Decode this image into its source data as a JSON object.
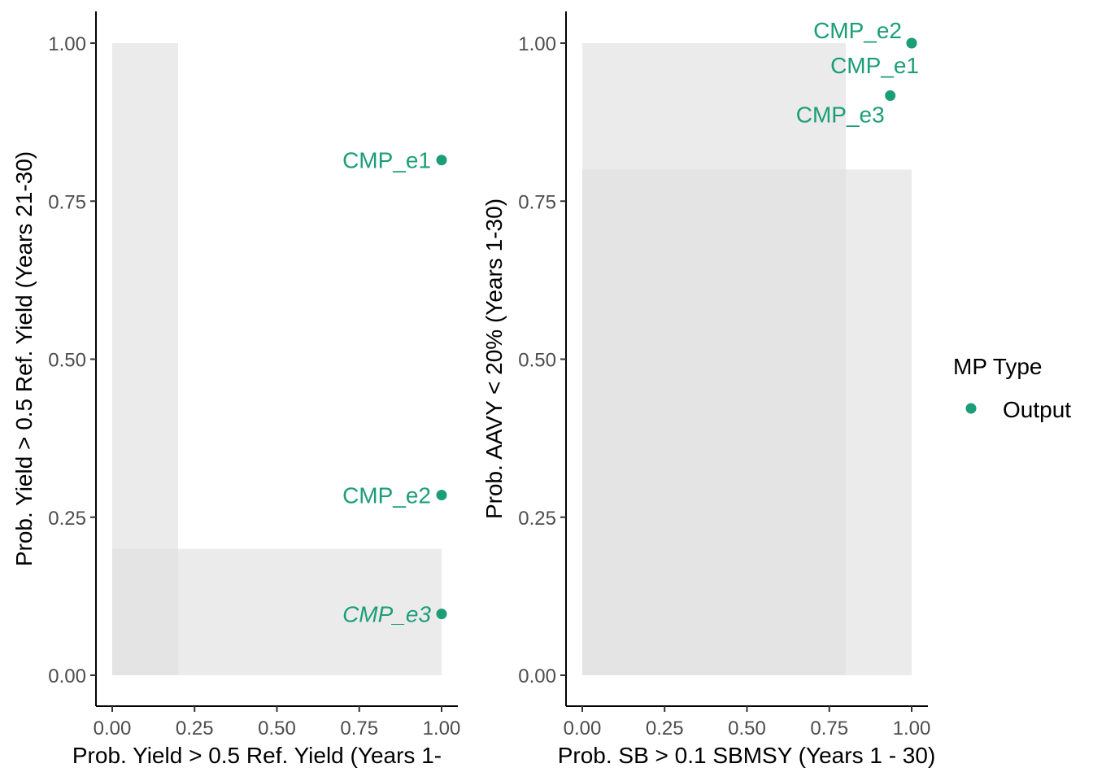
{
  "colors": {
    "point": "#1b9e77",
    "region": "#e0e0e0",
    "axis": "#000000",
    "tick_text": "#4d4d4d"
  },
  "legend": {
    "title": "MP Type",
    "entries": [
      {
        "label": "Output",
        "color": "#1b9e77",
        "shape": "circle"
      }
    ]
  },
  "chart_data": [
    {
      "type": "scatter",
      "xlabel": "Prob. Yield > 0.5 Ref. Yield (Years 1-",
      "ylabel": "Prob. Yield > 0.5 Ref. Yield (Years 21-30)",
      "xlim": [
        0,
        1
      ],
      "ylim": [
        0,
        1
      ],
      "xticks": [
        "0.00",
        "0.25",
        "0.50",
        "0.75",
        "1.00"
      ],
      "yticks": [
        "0.00",
        "0.25",
        "0.50",
        "0.75",
        "1.00"
      ],
      "grid": false,
      "regions": [
        {
          "x": [
            0,
            0.2
          ],
          "y": [
            0,
            1
          ]
        },
        {
          "x": [
            0,
            1
          ],
          "y": [
            0,
            0.2
          ]
        }
      ],
      "points": [
        {
          "label": "CMP_e1",
          "x": 1.0,
          "y": 0.815,
          "italic": false
        },
        {
          "label": "CMP_e2",
          "x": 1.0,
          "y": 0.285,
          "italic": false
        },
        {
          "label": "CMP_e3",
          "x": 1.0,
          "y": 0.097,
          "italic": true
        }
      ]
    },
    {
      "type": "scatter",
      "xlabel": "Prob. SB > 0.1 SBMSY (Years 1 - 30)",
      "ylabel": "Prob. AAVY < 20% (Years 1-30)",
      "xlim": [
        0,
        1
      ],
      "ylim": [
        0,
        1
      ],
      "xticks": [
        "0.00",
        "0.25",
        "0.50",
        "0.75",
        "1.00"
      ],
      "yticks": [
        "0.00",
        "0.25",
        "0.50",
        "0.75",
        "1.00"
      ],
      "grid": false,
      "regions": [
        {
          "x": [
            0,
            0.8
          ],
          "y": [
            0,
            1
          ]
        },
        {
          "x": [
            0,
            1
          ],
          "y": [
            0,
            0.8
          ]
        }
      ],
      "points": [
        {
          "label": "CMP_e2",
          "x": 1.0,
          "y": 1.0,
          "italic": false
        },
        {
          "label": "CMP_e1",
          "x": 1.0,
          "y": 1.0,
          "italic": false
        },
        {
          "label": "CMP_e3",
          "x": 0.935,
          "y": 0.917,
          "italic": false
        }
      ]
    }
  ]
}
